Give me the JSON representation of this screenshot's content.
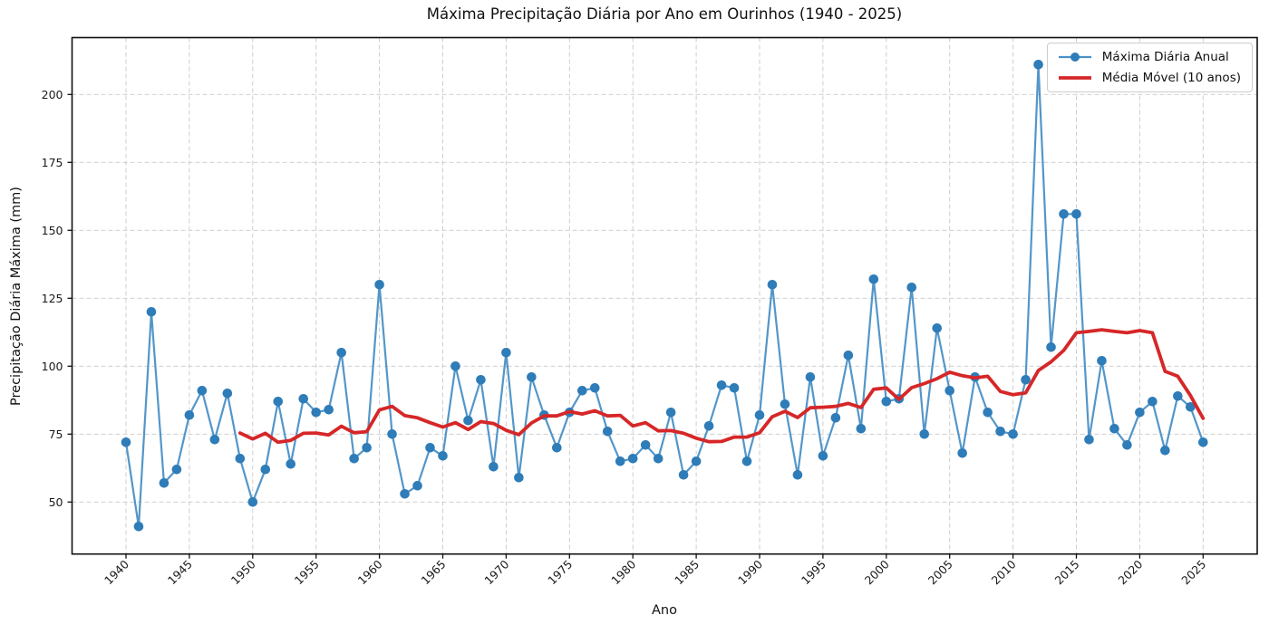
{
  "title": "Máxima Precipitação Diária por Ano em Ourinhos (1940 - 2025)",
  "chart_data": {
    "type": "line",
    "title": "Máxima Precipitação Diária por Ano em Ourinhos (1940 - 2025)",
    "xlabel": "Ano",
    "ylabel": "Precipitação Diária Máxima (mm)",
    "x_ticks": [
      1940,
      1945,
      1950,
      1955,
      1960,
      1965,
      1970,
      1975,
      1980,
      1985,
      1990,
      1995,
      2000,
      2005,
      2010,
      2015,
      2020,
      2025
    ],
    "y_ticks": [
      50,
      75,
      100,
      125,
      150,
      175,
      200
    ],
    "ylim": [
      35,
      220
    ],
    "grid": true,
    "legend_position": "upper right",
    "x": [
      1940,
      1941,
      1942,
      1943,
      1944,
      1945,
      1946,
      1947,
      1948,
      1949,
      1950,
      1951,
      1952,
      1953,
      1954,
      1955,
      1956,
      1957,
      1958,
      1959,
      1960,
      1961,
      1962,
      1963,
      1964,
      1965,
      1966,
      1967,
      1968,
      1969,
      1970,
      1971,
      1972,
      1973,
      1974,
      1975,
      1976,
      1977,
      1978,
      1979,
      1980,
      1981,
      1982,
      1983,
      1984,
      1985,
      1986,
      1987,
      1988,
      1989,
      1990,
      1991,
      1992,
      1993,
      1994,
      1995,
      1996,
      1997,
      1998,
      1999,
      2000,
      2001,
      2002,
      2003,
      2004,
      2005,
      2006,
      2007,
      2008,
      2009,
      2010,
      2011,
      2012,
      2013,
      2014,
      2015,
      2016,
      2017,
      2018,
      2019,
      2020,
      2021,
      2022,
      2023,
      2024,
      2025
    ],
    "series": [
      {
        "name": "Máxima Diária Anual",
        "type": "line-markers",
        "values": [
          72,
          41,
          120,
          57,
          62,
          82,
          91,
          73,
          90,
          66,
          50,
          62,
          87,
          64,
          88,
          83,
          84,
          105,
          66,
          70,
          130,
          75,
          53,
          56,
          70,
          67,
          100,
          80,
          95,
          63,
          105,
          59,
          96,
          82,
          70,
          83,
          91,
          92,
          76,
          65,
          66,
          71,
          66,
          83,
          60,
          65,
          78,
          93,
          92,
          65,
          82,
          130,
          86,
          60,
          96,
          67,
          81,
          104,
          77,
          132,
          87,
          88,
          129,
          75,
          114,
          91,
          68,
          96,
          83,
          76,
          75,
          95,
          211,
          107,
          156,
          156,
          73,
          102,
          77,
          71,
          83,
          87,
          69,
          89,
          85,
          72
        ]
      },
      {
        "name": "Média Móvel (10 anos)",
        "type": "line",
        "derived": "trailing_rolling_mean_of_series_0",
        "window": 10
      }
    ],
    "style": {
      "line_color": "#4a90c6",
      "marker_color": "#2e7cb8",
      "moving_avg_color": "#d62728",
      "grid_color": "#c9c9c9",
      "axis_color": "#111111",
      "text_color": "#1a1a1a"
    }
  },
  "legend": {
    "item1": "Máxima Diária Anual",
    "item2": "Média Móvel (10 anos)"
  }
}
